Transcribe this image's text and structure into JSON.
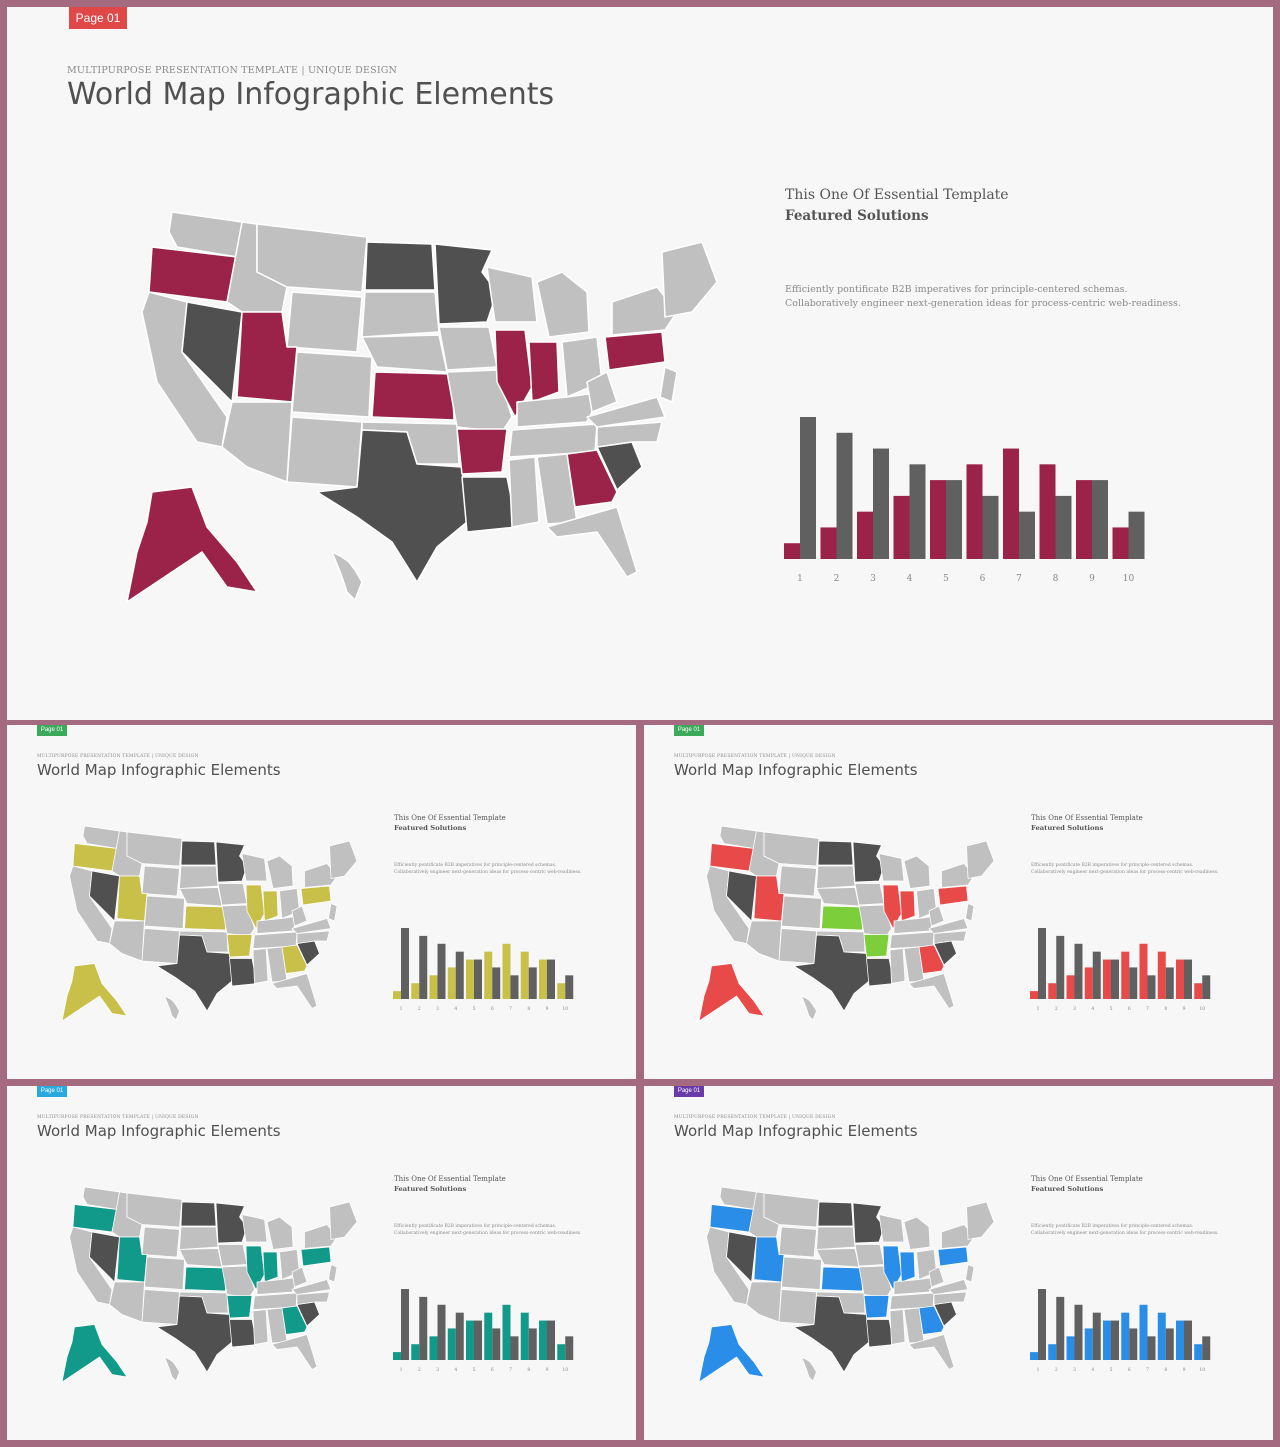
{
  "colors": {
    "frame": "#a36a80",
    "slide_bg": "#f7f7f7",
    "state_gray": "#c0c0c0",
    "state_dark": "#505050",
    "state_border": "#ffffff"
  },
  "slides": [
    {
      "badge_text": "Page 01",
      "badge_color": "#e04848",
      "eyebrow": "MULTIPURPOSE PRESENTATION TEMPLATE | UNIQUE DESIGN",
      "title": "World Map Infographic Elements",
      "subtitle": "This One Of Essential  Template",
      "featured": "Featured Solutions",
      "desc_line1": "Efficiently pontificate B2B imperatives for principle-centered schemas.",
      "desc_line2": "Collaboratively engineer next-generation ideas for process-centric web-readiness.",
      "accent": "#9b2248",
      "accent_alt": "#9b2248"
    },
    {
      "badge_text": "Page 01",
      "badge_color": "#3aaa5a",
      "eyebrow": "MULTIPURPOSE PRESENTATION TEMPLATE | UNIQUE DESIGN",
      "title": "World Map Infographic Elements",
      "subtitle": "This One Of Essential  Template",
      "featured": "Featured Solutions",
      "desc_line1": "Efficiently pontificate B2B imperatives for principle-centered schemas.",
      "desc_line2": "Collaboratively engineer next-generation ideas for process-centric web-readiness.",
      "accent": "#c9c04a",
      "accent_alt": "#c9c04a"
    },
    {
      "badge_text": "Page 01",
      "badge_color": "#3aaa5a",
      "eyebrow": "MULTIPURPOSE PRESENTATION TEMPLATE | UNIQUE DESIGN",
      "title": "World Map Infographic Elements",
      "subtitle": "This One Of Essential  Template",
      "featured": "Featured Solutions",
      "desc_line1": "Efficiently pontificate B2B imperatives for principle-centered schemas.",
      "desc_line2": "Collaboratively engineer next-generation ideas for process-centric web-readiness.",
      "accent": "#e84a4a",
      "accent_alt": "#7ccf3a"
    },
    {
      "badge_text": "Page 01",
      "badge_color": "#2aa8e0",
      "eyebrow": "MULTIPURPOSE PRESENTATION TEMPLATE | UNIQUE DESIGN",
      "title": "World Map Infographic Elements",
      "subtitle": "This One Of Essential  Template",
      "featured": "Featured Solutions",
      "desc_line1": "Efficiently pontificate B2B imperatives for principle-centered schemas.",
      "desc_line2": "Collaboratively engineer next-generation ideas for process-centric web-readiness.",
      "accent": "#119a8a",
      "accent_alt": "#119a8a"
    },
    {
      "badge_text": "Page 01",
      "badge_color": "#6a3aa8",
      "eyebrow": "MULTIPURPOSE PRESENTATION TEMPLATE | UNIQUE DESIGN",
      "title": "World Map Infographic Elements",
      "subtitle": "This One Of Essential  Template",
      "featured": "Featured Solutions",
      "desc_line1": "Efficiently pontificate B2B imperatives for principle-centered schemas.",
      "desc_line2": "Collaboratively engineer next-generation ideas for process-centric web-readiness.",
      "accent": "#2a8ee8",
      "accent_alt": "#2a8ee8"
    }
  ],
  "chart_data": {
    "type": "bar",
    "categories": [
      "1",
      "2",
      "3",
      "4",
      "5",
      "6",
      "7",
      "8",
      "9",
      "10"
    ],
    "series": [
      {
        "values": [
          1,
          2,
          3,
          4,
          5,
          6,
          7,
          6,
          5,
          2
        ]
      },
      {
        "values": [
          9,
          8,
          7,
          6,
          5,
          4,
          3,
          4,
          5,
          3
        ]
      }
    ],
    "ylim": [
      0,
      9
    ],
    "grid": false
  }
}
